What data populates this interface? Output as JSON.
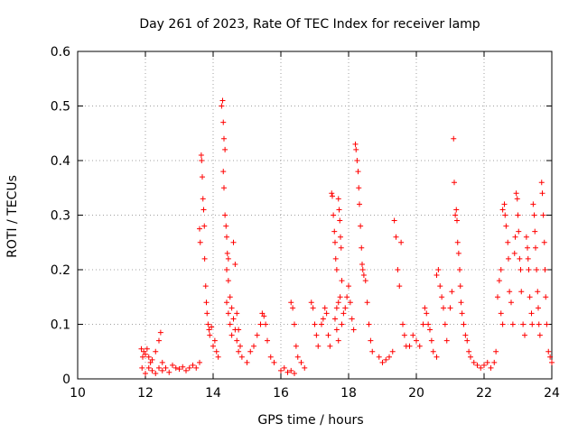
{
  "chart_data": {
    "type": "scatter",
    "title": "Day 261 of 2023, Rate Of TEC Index for receiver lamp",
    "xlabel": "GPS time / hours",
    "ylabel": "ROTI / TECUs",
    "xlim": [
      10,
      24
    ],
    "ylim": [
      0,
      0.6
    ],
    "x_ticks": [
      "10",
      "12",
      "14",
      "16",
      "18",
      "20",
      "22",
      "24"
    ],
    "y_ticks": [
      "0",
      "0.1",
      "0.2",
      "0.3",
      "0.4",
      "0.5",
      "0.6"
    ],
    "grid": true,
    "marker": "+",
    "color": "#ff0000",
    "series": [
      {
        "points": [
          [
            11.88,
            0.055
          ],
          [
            11.92,
            0.04
          ],
          [
            11.95,
            0.05
          ],
          [
            12.0,
            0.045
          ],
          [
            12.05,
            0.055
          ],
          [
            12.1,
            0.04
          ],
          [
            12.15,
            0.03
          ],
          [
            12.2,
            0.035
          ],
          [
            12.3,
            0.05
          ],
          [
            12.4,
            0.07
          ],
          [
            12.45,
            0.085
          ],
          [
            12.5,
            0.03
          ],
          [
            11.9,
            0.02
          ],
          [
            12.0,
            0.01
          ],
          [
            12.1,
            0.02
          ],
          [
            12.2,
            0.015
          ],
          [
            12.3,
            0.01
          ],
          [
            12.4,
            0.02
          ],
          [
            12.5,
            0.015
          ],
          [
            12.6,
            0.02
          ],
          [
            12.7,
            0.012
          ],
          [
            12.8,
            0.025
          ],
          [
            12.9,
            0.02
          ],
          [
            13.0,
            0.018
          ],
          [
            13.1,
            0.022
          ],
          [
            13.2,
            0.015
          ],
          [
            13.3,
            0.02
          ],
          [
            13.4,
            0.025
          ],
          [
            13.5,
            0.02
          ],
          [
            13.6,
            0.03
          ],
          [
            13.6,
            0.275
          ],
          [
            13.62,
            0.25
          ],
          [
            13.65,
            0.41
          ],
          [
            13.66,
            0.4
          ],
          [
            13.68,
            0.37
          ],
          [
            13.7,
            0.33
          ],
          [
            13.72,
            0.31
          ],
          [
            13.74,
            0.28
          ],
          [
            13.75,
            0.22
          ],
          [
            13.78,
            0.17
          ],
          [
            13.8,
            0.14
          ],
          [
            13.82,
            0.12
          ],
          [
            13.85,
            0.1
          ],
          [
            13.88,
            0.09
          ],
          [
            13.9,
            0.08
          ],
          [
            13.95,
            0.095
          ],
          [
            14.0,
            0.06
          ],
          [
            14.05,
            0.07
          ],
          [
            14.1,
            0.05
          ],
          [
            14.15,
            0.04
          ],
          [
            14.25,
            0.5
          ],
          [
            14.28,
            0.51
          ],
          [
            14.3,
            0.47
          ],
          [
            14.32,
            0.44
          ],
          [
            14.35,
            0.42
          ],
          [
            14.3,
            0.38
          ],
          [
            14.32,
            0.35
          ],
          [
            14.35,
            0.3
          ],
          [
            14.38,
            0.28
          ],
          [
            14.4,
            0.26
          ],
          [
            14.42,
            0.23
          ],
          [
            14.45,
            0.22
          ],
          [
            14.4,
            0.2
          ],
          [
            14.45,
            0.18
          ],
          [
            14.5,
            0.15
          ],
          [
            14.55,
            0.13
          ],
          [
            14.6,
            0.25
          ],
          [
            14.65,
            0.21
          ],
          [
            14.7,
            0.12
          ],
          [
            14.75,
            0.09
          ],
          [
            14.8,
            0.06
          ],
          [
            14.85,
            0.04
          ],
          [
            14.4,
            0.14
          ],
          [
            14.45,
            0.12
          ],
          [
            14.5,
            0.1
          ],
          [
            14.55,
            0.08
          ],
          [
            14.6,
            0.11
          ],
          [
            14.65,
            0.09
          ],
          [
            14.7,
            0.07
          ],
          [
            14.75,
            0.05
          ],
          [
            15.0,
            0.03
          ],
          [
            15.1,
            0.05
          ],
          [
            15.2,
            0.06
          ],
          [
            15.3,
            0.08
          ],
          [
            15.4,
            0.1
          ],
          [
            15.45,
            0.12
          ],
          [
            15.5,
            0.115
          ],
          [
            15.55,
            0.1
          ],
          [
            15.6,
            0.07
          ],
          [
            15.7,
            0.04
          ],
          [
            15.8,
            0.03
          ],
          [
            16.0,
            0.015
          ],
          [
            16.1,
            0.02
          ],
          [
            16.2,
            0.012
          ],
          [
            16.3,
            0.015
          ],
          [
            16.4,
            0.01
          ],
          [
            16.3,
            0.14
          ],
          [
            16.35,
            0.13
          ],
          [
            16.4,
            0.1
          ],
          [
            16.45,
            0.06
          ],
          [
            16.5,
            0.04
          ],
          [
            16.6,
            0.03
          ],
          [
            16.7,
            0.02
          ],
          [
            16.9,
            0.14
          ],
          [
            16.95,
            0.13
          ],
          [
            17.0,
            0.1
          ],
          [
            17.05,
            0.08
          ],
          [
            17.1,
            0.06
          ],
          [
            17.2,
            0.1
          ],
          [
            17.25,
            0.11
          ],
          [
            17.3,
            0.13
          ],
          [
            17.35,
            0.12
          ],
          [
            17.4,
            0.08
          ],
          [
            17.45,
            0.06
          ],
          [
            17.5,
            0.34
          ],
          [
            17.52,
            0.335
          ],
          [
            17.55,
            0.3
          ],
          [
            17.58,
            0.27
          ],
          [
            17.6,
            0.25
          ],
          [
            17.62,
            0.22
          ],
          [
            17.65,
            0.2
          ],
          [
            17.7,
            0.33
          ],
          [
            17.72,
            0.31
          ],
          [
            17.74,
            0.29
          ],
          [
            17.76,
            0.26
          ],
          [
            17.78,
            0.24
          ],
          [
            17.8,
            0.18
          ],
          [
            17.75,
            0.15
          ],
          [
            17.7,
            0.14
          ],
          [
            17.65,
            0.13
          ],
          [
            17.6,
            0.11
          ],
          [
            17.65,
            0.09
          ],
          [
            17.7,
            0.07
          ],
          [
            17.8,
            0.1
          ],
          [
            17.85,
            0.12
          ],
          [
            17.9,
            0.13
          ],
          [
            17.95,
            0.15
          ],
          [
            18.0,
            0.17
          ],
          [
            18.05,
            0.14
          ],
          [
            18.1,
            0.11
          ],
          [
            18.15,
            0.09
          ],
          [
            18.2,
            0.43
          ],
          [
            18.22,
            0.42
          ],
          [
            18.25,
            0.4
          ],
          [
            18.28,
            0.38
          ],
          [
            18.3,
            0.35
          ],
          [
            18.32,
            0.32
          ],
          [
            18.35,
            0.28
          ],
          [
            18.38,
            0.24
          ],
          [
            18.4,
            0.21
          ],
          [
            18.42,
            0.2
          ],
          [
            18.45,
            0.19
          ],
          [
            18.5,
            0.18
          ],
          [
            18.55,
            0.14
          ],
          [
            18.6,
            0.1
          ],
          [
            18.65,
            0.07
          ],
          [
            18.7,
            0.05
          ],
          [
            18.9,
            0.04
          ],
          [
            19.0,
            0.03
          ],
          [
            19.1,
            0.035
          ],
          [
            19.2,
            0.04
          ],
          [
            19.3,
            0.05
          ],
          [
            19.35,
            0.29
          ],
          [
            19.4,
            0.26
          ],
          [
            19.45,
            0.2
          ],
          [
            19.5,
            0.17
          ],
          [
            19.55,
            0.25
          ],
          [
            19.6,
            0.1
          ],
          [
            19.65,
            0.08
          ],
          [
            19.7,
            0.06
          ],
          [
            19.8,
            0.06
          ],
          [
            19.9,
            0.08
          ],
          [
            20.0,
            0.07
          ],
          [
            20.1,
            0.06
          ],
          [
            20.2,
            0.1
          ],
          [
            20.25,
            0.13
          ],
          [
            20.3,
            0.12
          ],
          [
            20.35,
            0.1
          ],
          [
            20.4,
            0.09
          ],
          [
            20.45,
            0.07
          ],
          [
            20.5,
            0.05
          ],
          [
            20.6,
            0.04
          ],
          [
            20.6,
            0.19
          ],
          [
            20.65,
            0.2
          ],
          [
            20.7,
            0.17
          ],
          [
            20.75,
            0.15
          ],
          [
            20.8,
            0.13
          ],
          [
            20.85,
            0.1
          ],
          [
            20.9,
            0.07
          ],
          [
            21.0,
            0.13
          ],
          [
            21.05,
            0.16
          ],
          [
            21.1,
            0.44
          ],
          [
            21.12,
            0.36
          ],
          [
            21.15,
            0.3
          ],
          [
            21.18,
            0.31
          ],
          [
            21.2,
            0.29
          ],
          [
            21.22,
            0.25
          ],
          [
            21.25,
            0.23
          ],
          [
            21.28,
            0.2
          ],
          [
            21.3,
            0.17
          ],
          [
            21.32,
            0.14
          ],
          [
            21.35,
            0.12
          ],
          [
            21.4,
            0.1
          ],
          [
            21.45,
            0.08
          ],
          [
            21.5,
            0.07
          ],
          [
            21.55,
            0.05
          ],
          [
            21.6,
            0.04
          ],
          [
            21.7,
            0.03
          ],
          [
            21.8,
            0.025
          ],
          [
            21.9,
            0.02
          ],
          [
            22.0,
            0.025
          ],
          [
            22.1,
            0.03
          ],
          [
            22.2,
            0.02
          ],
          [
            22.3,
            0.03
          ],
          [
            22.35,
            0.05
          ],
          [
            22.4,
            0.15
          ],
          [
            22.45,
            0.18
          ],
          [
            22.5,
            0.2
          ],
          [
            22.55,
            0.31
          ],
          [
            22.6,
            0.32
          ],
          [
            22.62,
            0.3
          ],
          [
            22.65,
            0.28
          ],
          [
            22.7,
            0.25
          ],
          [
            22.72,
            0.22
          ],
          [
            22.75,
            0.16
          ],
          [
            22.8,
            0.14
          ],
          [
            22.85,
            0.1
          ],
          [
            22.5,
            0.12
          ],
          [
            22.55,
            0.1
          ],
          [
            22.9,
            0.23
          ],
          [
            22.92,
            0.26
          ],
          [
            22.95,
            0.34
          ],
          [
            22.98,
            0.33
          ],
          [
            23.0,
            0.3
          ],
          [
            23.02,
            0.27
          ],
          [
            23.05,
            0.22
          ],
          [
            23.08,
            0.2
          ],
          [
            23.1,
            0.16
          ],
          [
            23.15,
            0.1
          ],
          [
            23.2,
            0.08
          ],
          [
            23.25,
            0.26
          ],
          [
            23.28,
            0.24
          ],
          [
            23.3,
            0.22
          ],
          [
            23.32,
            0.2
          ],
          [
            23.35,
            0.15
          ],
          [
            23.4,
            0.12
          ],
          [
            23.42,
            0.1
          ],
          [
            23.45,
            0.32
          ],
          [
            23.48,
            0.3
          ],
          [
            23.5,
            0.27
          ],
          [
            23.52,
            0.24
          ],
          [
            23.55,
            0.2
          ],
          [
            23.58,
            0.16
          ],
          [
            23.6,
            0.13
          ],
          [
            23.62,
            0.1
          ],
          [
            23.65,
            0.08
          ],
          [
            23.7,
            0.36
          ],
          [
            23.72,
            0.34
          ],
          [
            23.75,
            0.3
          ],
          [
            23.78,
            0.25
          ],
          [
            23.8,
            0.2
          ],
          [
            23.82,
            0.15
          ],
          [
            23.85,
            0.1
          ],
          [
            23.9,
            0.05
          ],
          [
            23.95,
            0.04
          ],
          [
            24.0,
            0.03
          ]
        ]
      }
    ]
  }
}
